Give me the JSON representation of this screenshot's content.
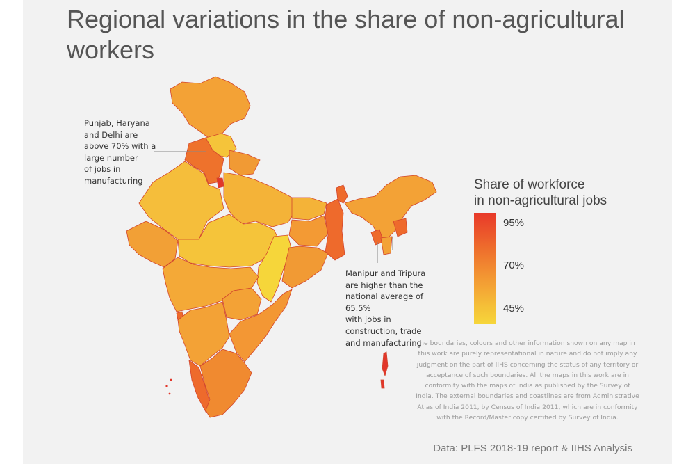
{
  "title": "Regional variations in the share of non-agricultural workers",
  "annotations": {
    "north": "Punjab, Haryana\nand Delhi are\nabove 70% with a\nlarge number\nof jobs in\nmanufacturing",
    "northeast": "Manipur and Tripura\nare higher than the\nnational average of 65.5%\nwith jobs in\nconstruction, trade\nand manufacturing"
  },
  "legend": {
    "title": "Share of workforce\nin non-agricultural jobs",
    "ticks": [
      "95%",
      "70%",
      "45%"
    ],
    "colors": {
      "high": "#e8392a",
      "mid": "#f39a33",
      "low": "#f6d63a"
    }
  },
  "disclaimer": "he boundaries, colours and other information shown on any map in this work are purely representational in nature and do not imply any judgment on the part of IIHS concerning the status of any territory or acceptance of such boundaries. All the maps in this work are in conformity with the maps of India as published by the Survey of India. The external boundaries and coastlines are from Administrative Atlas of India 2011, by Census of India 2011, which are in conformity with the Record/Master copy certified by Survey of India.",
  "source": "Data: PLFS 2018-19 report & IIHS Analysis"
}
